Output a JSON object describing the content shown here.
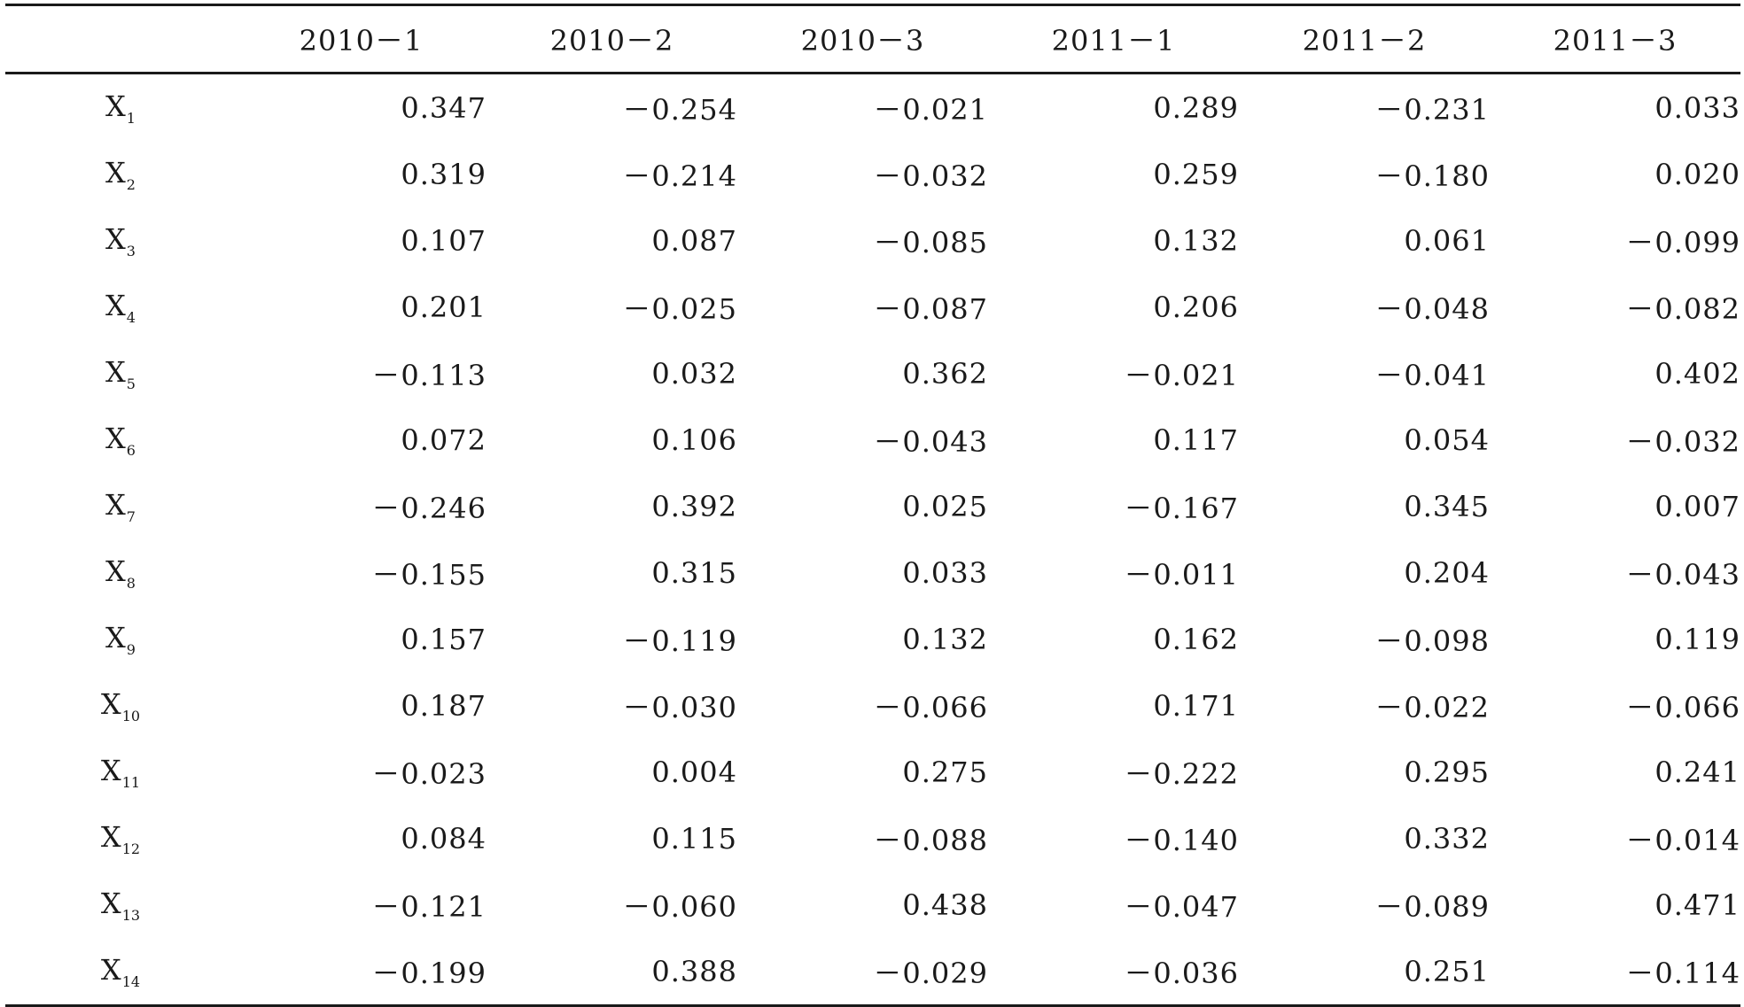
{
  "table": {
    "columns": [
      "2010－1",
      "2010－2",
      "2010－3",
      "2011－1",
      "2011－2",
      "2011－3"
    ],
    "rows": [
      {
        "var": "X",
        "sub": "1",
        "values": [
          "0.347",
          "－0.254",
          "－0.021",
          "0.289",
          "－0.231",
          "0.033"
        ]
      },
      {
        "var": "X",
        "sub": "2",
        "values": [
          "0.319",
          "－0.214",
          "－0.032",
          "0.259",
          "－0.180",
          "0.020"
        ]
      },
      {
        "var": "X",
        "sub": "3",
        "values": [
          "0.107",
          "0.087",
          "－0.085",
          "0.132",
          "0.061",
          "－0.099"
        ]
      },
      {
        "var": "X",
        "sub": "4",
        "values": [
          "0.201",
          "－0.025",
          "－0.087",
          "0.206",
          "－0.048",
          "－0.082"
        ]
      },
      {
        "var": "X",
        "sub": "5",
        "values": [
          "－0.113",
          "0.032",
          "0.362",
          "－0.021",
          "－0.041",
          "0.402"
        ]
      },
      {
        "var": "X",
        "sub": "6",
        "values": [
          "0.072",
          "0.106",
          "－0.043",
          "0.117",
          "0.054",
          "－0.032"
        ]
      },
      {
        "var": "X",
        "sub": "7",
        "values": [
          "－0.246",
          "0.392",
          "0.025",
          "－0.167",
          "0.345",
          "0.007"
        ]
      },
      {
        "var": "X",
        "sub": "8",
        "values": [
          "－0.155",
          "0.315",
          "0.033",
          "－0.011",
          "0.204",
          "－0.043"
        ]
      },
      {
        "var": "X",
        "sub": "9",
        "values": [
          "0.157",
          "－0.119",
          "0.132",
          "0.162",
          "－0.098",
          "0.119"
        ]
      },
      {
        "var": "X",
        "sub": "10",
        "values": [
          "0.187",
          "－0.030",
          "－0.066",
          "0.171",
          "－0.022",
          "－0.066"
        ]
      },
      {
        "var": "X",
        "sub": "11",
        "values": [
          "－0.023",
          "0.004",
          "0.275",
          "－0.222",
          "0.295",
          "0.241"
        ]
      },
      {
        "var": "X",
        "sub": "12",
        "values": [
          "0.084",
          "0.115",
          "－0.088",
          "－0.140",
          "0.332",
          "－0.014"
        ]
      },
      {
        "var": "X",
        "sub": "13",
        "values": [
          "－0.121",
          "－0.060",
          "0.438",
          "－0.047",
          "－0.089",
          "0.471"
        ]
      },
      {
        "var": "X",
        "sub": "14",
        "values": [
          "－0.199",
          "0.388",
          "－0.029",
          "－0.036",
          "0.251",
          "－0.114"
        ]
      }
    ]
  }
}
